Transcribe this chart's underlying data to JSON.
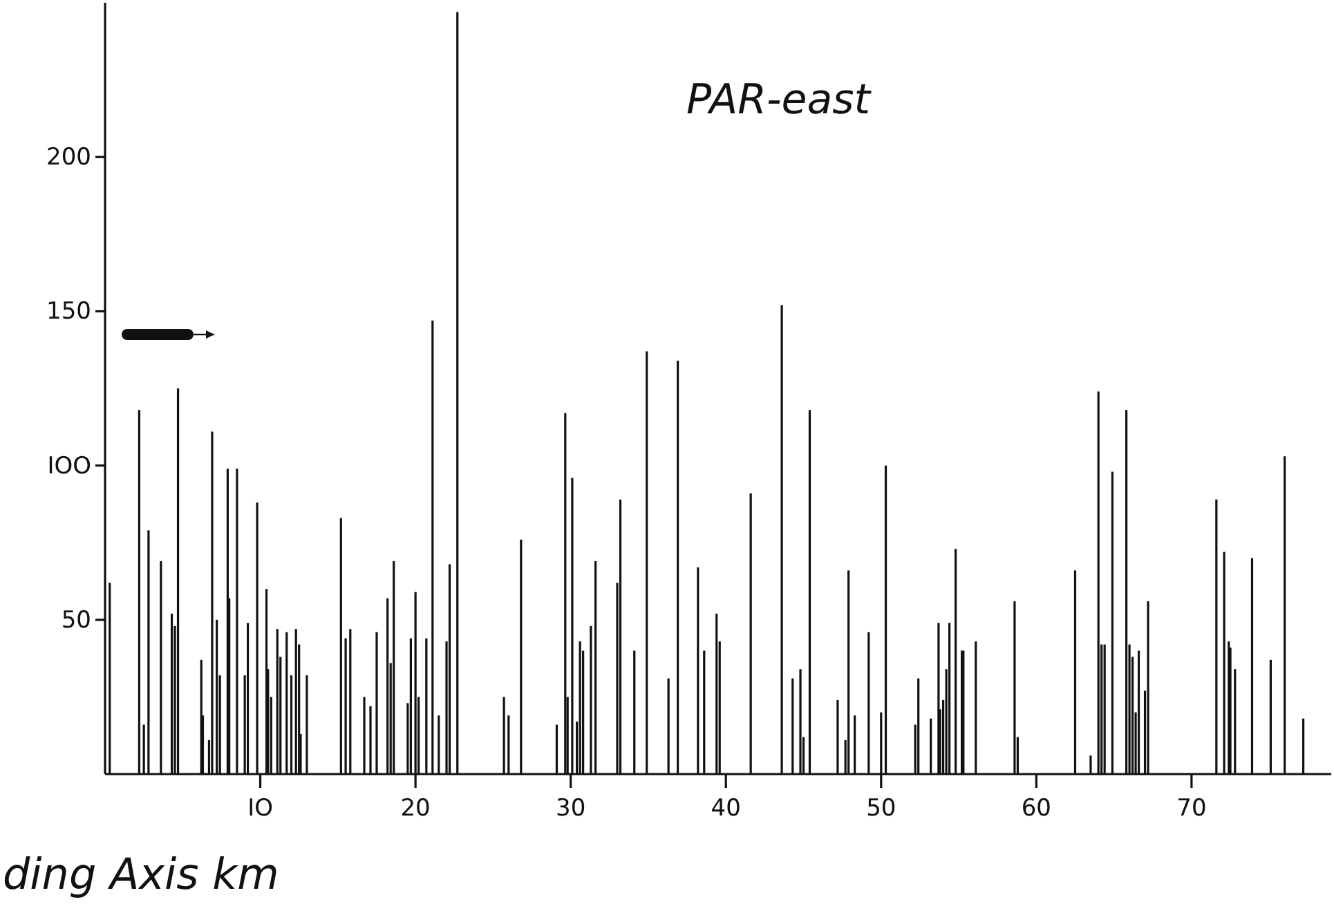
{
  "chart_data": {
    "type": "bar",
    "title": "PAR-east",
    "xlabel": "ding Axis km",
    "x": [
      0.3,
      2.2,
      2.5,
      2.8,
      3.6,
      4.3,
      4.5,
      4.7,
      6.2,
      6.3,
      6.7,
      6.9,
      7.2,
      7.4,
      7.9,
      8.0,
      8.5,
      9.0,
      9.2,
      9.8,
      10.4,
      10.5,
      10.7,
      11.1,
      11.3,
      11.7,
      12.0,
      12.3,
      12.5,
      12.6,
      13.0,
      15.2,
      15.5,
      15.8,
      16.7,
      17.1,
      17.5,
      18.2,
      18.4,
      18.6,
      19.5,
      19.7,
      20.0,
      20.2,
      20.7,
      21.1,
      21.5,
      22.0,
      22.2,
      22.7,
      25.7,
      26.0,
      26.8,
      29.1,
      29.65,
      29.8,
      30.1,
      30.4,
      30.6,
      30.8,
      31.3,
      31.6,
      33.0,
      33.2,
      34.1,
      34.9,
      36.3,
      36.9,
      38.2,
      38.6,
      39.4,
      39.6,
      41.6,
      43.6,
      44.3,
      44.8,
      45.0,
      45.4,
      47.2,
      47.7,
      47.9,
      48.3,
      49.2,
      50.0,
      50.3,
      52.2,
      52.4,
      53.2,
      53.7,
      53.8,
      54.0,
      54.2,
      54.4,
      54.8,
      55.2,
      55.3,
      56.1,
      58.6,
      58.8,
      62.5,
      63.5,
      64.0,
      64.2,
      64.4,
      64.9,
      65.8,
      66.0,
      66.2,
      66.4,
      66.6,
      67.0,
      67.2,
      71.6,
      72.1,
      72.4,
      72.5,
      72.8,
      73.9,
      75.1,
      76.0,
      77.2
    ],
    "values": [
      62,
      118,
      16,
      79,
      69,
      52,
      48,
      125,
      37,
      19,
      11,
      111,
      50,
      32,
      99,
      57,
      99,
      32,
      49,
      88,
      60,
      34,
      25,
      47,
      38,
      46,
      32,
      47,
      42,
      13,
      32,
      83,
      44,
      47,
      25,
      22,
      46,
      57,
      36,
      69,
      23,
      44,
      59,
      25,
      44,
      147,
      19,
      43,
      68,
      247,
      25,
      19,
      76,
      16,
      117,
      25,
      96,
      17,
      43,
      40,
      48,
      69,
      62,
      89,
      40,
      137,
      31,
      134,
      67,
      40,
      52,
      43,
      91,
      152,
      31,
      34,
      12,
      118,
      24,
      11,
      66,
      19,
      46,
      20,
      100,
      16,
      31,
      18,
      49,
      21,
      24,
      34,
      49,
      73,
      40,
      40,
      43,
      56,
      12,
      66,
      6,
      124,
      42,
      42,
      98,
      118,
      42,
      38,
      20,
      40,
      27,
      56,
      89,
      72,
      43,
      41,
      34,
      70,
      37,
      103,
      18
    ],
    "color": "#111111",
    "xlim": [
      0,
      79
    ],
    "ylim": [
      0,
      250
    ],
    "xticks": [
      {
        "value": 10,
        "label": "IO"
      },
      20,
      30,
      40,
      50,
      60,
      70
    ],
    "yticks": [
      50,
      {
        "value": 100,
        "label": "IOO"
      },
      150,
      200
    ]
  }
}
